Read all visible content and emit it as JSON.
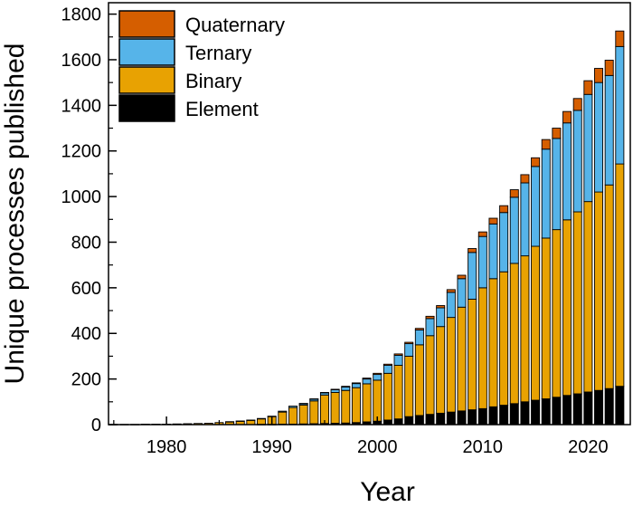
{
  "chart_data": {
    "type": "bar",
    "stacked": true,
    "title": "",
    "xlabel": "Year",
    "ylabel": "Unique processes published",
    "ylim": [
      0,
      1850
    ],
    "xlim": [
      1974.5,
      2024
    ],
    "x_ticks": [
      1980,
      1990,
      2000,
      2010,
      2020
    ],
    "x_tick_labels": [
      "1980",
      "1990",
      "2000",
      "2010",
      "2020"
    ],
    "y_ticks": [
      0,
      200,
      400,
      600,
      800,
      1000,
      1200,
      1400,
      1600,
      1800
    ],
    "y_tick_labels": [
      "0",
      "200",
      "400",
      "600",
      "800",
      "1000",
      "1200",
      "1400",
      "1600",
      "1800"
    ],
    "grid": false,
    "legend_position": "top-left",
    "legend": [
      "Quaternary",
      "Ternary",
      "Binary",
      "Element"
    ],
    "categories": [
      1975,
      1976,
      1977,
      1978,
      1979,
      1980,
      1981,
      1982,
      1983,
      1984,
      1985,
      1986,
      1987,
      1988,
      1989,
      1990,
      1991,
      1992,
      1993,
      1994,
      1995,
      1996,
      1997,
      1998,
      1999,
      2000,
      2001,
      2002,
      2003,
      2004,
      2005,
      2006,
      2007,
      2008,
      2009,
      2010,
      2011,
      2012,
      2013,
      2014,
      2015,
      2016,
      2017,
      2018,
      2019,
      2020,
      2021,
      2022,
      2023
    ],
    "series": [
      {
        "name": "Element",
        "color": "#000000",
        "values": [
          0,
          0,
          0,
          0,
          0,
          0,
          0,
          0,
          0,
          0,
          0,
          0,
          0,
          0,
          1,
          1,
          2,
          2,
          3,
          4,
          5,
          6,
          7,
          9,
          12,
          15,
          20,
          25,
          35,
          40,
          45,
          50,
          55,
          60,
          65,
          70,
          78,
          85,
          92,
          100,
          107,
          113,
          120,
          128,
          135,
          143,
          150,
          158,
          168
        ]
      },
      {
        "name": "Binary",
        "color": "#E8A202",
        "values": [
          1,
          1,
          1,
          2,
          2,
          2,
          3,
          4,
          5,
          6,
          9,
          12,
          15,
          19,
          24,
          34,
          53,
          73,
          83,
          100,
          125,
          135,
          143,
          153,
          167,
          180,
          205,
          235,
          265,
          310,
          345,
          380,
          415,
          455,
          485,
          530,
          562,
          585,
          615,
          640,
          675,
          705,
          735,
          770,
          798,
          835,
          870,
          893,
          975
        ]
      },
      {
        "name": "Ternary",
        "color": "#56B4E9",
        "values": [
          0,
          0,
          0,
          0,
          0,
          0,
          0,
          0,
          0,
          0,
          0,
          1,
          1,
          1,
          2,
          2,
          4,
          6,
          6,
          8,
          10,
          12,
          15,
          18,
          21,
          25,
          35,
          44,
          55,
          65,
          75,
          82,
          110,
          125,
          205,
          225,
          240,
          260,
          290,
          320,
          350,
          390,
          400,
          425,
          445,
          470,
          480,
          480,
          515
        ]
      },
      {
        "name": "Quaternary",
        "color": "#D55E00",
        "values": [
          0,
          0,
          0,
          0,
          0,
          0,
          0,
          0,
          0,
          0,
          0,
          0,
          0,
          0,
          0,
          0,
          0,
          0,
          1,
          1,
          1,
          2,
          3,
          3,
          4,
          5,
          5,
          6,
          6,
          7,
          10,
          10,
          12,
          15,
          17,
          20,
          25,
          30,
          33,
          36,
          38,
          42,
          45,
          50,
          52,
          60,
          62,
          67,
          68
        ]
      }
    ]
  }
}
